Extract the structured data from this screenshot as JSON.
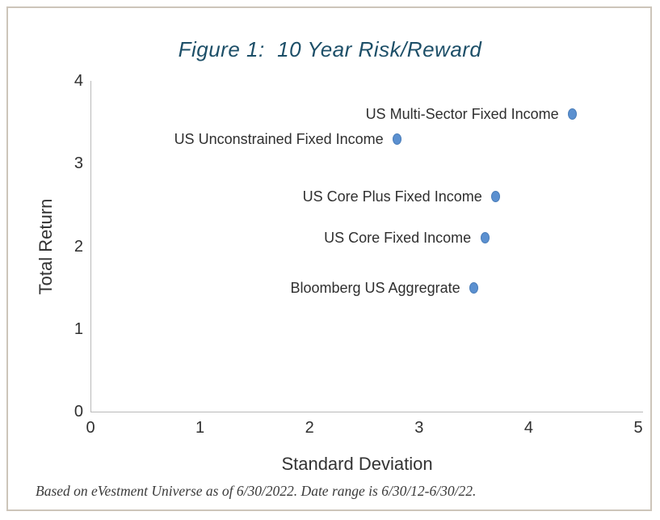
{
  "figure": {
    "title": "Figure 1:  10 Year Risk/Reward",
    "footnote": "Based on eVestment Universe as of 6/30/2022. Date range is 6/30/12-6/30/22."
  },
  "chart_data": {
    "type": "scatter",
    "title": "Figure 1:  10 Year Risk/Reward",
    "xlabel": "Standard Deviation",
    "ylabel": "Total Return",
    "xlim": [
      0,
      5
    ],
    "ylim": [
      0,
      4
    ],
    "x_ticks": [
      0,
      1,
      2,
      3,
      4,
      5
    ],
    "y_ticks": [
      0,
      1,
      2,
      3,
      4
    ],
    "grid": false,
    "legend_position": "none",
    "points": [
      {
        "label": "US Multi-Sector Fixed Income",
        "x": 4.4,
        "y": 3.6
      },
      {
        "label": "US Unconstrained Fixed Income",
        "x": 2.8,
        "y": 3.3
      },
      {
        "label": "US Core Plus Fixed Income",
        "x": 3.7,
        "y": 2.6
      },
      {
        "label": "US Core Fixed Income",
        "x": 3.6,
        "y": 2.1
      },
      {
        "label": "Bloomberg US Aggregrate",
        "x": 3.5,
        "y": 1.5
      }
    ]
  },
  "colors": {
    "title_text": "#1d4f68",
    "axis_line": "#b9b9b9",
    "label_text": "#2f2f2f",
    "marker_fill": "#5b90d0",
    "marker_edge": "#4a7db9",
    "frame_border": "#cdc5ba"
  }
}
